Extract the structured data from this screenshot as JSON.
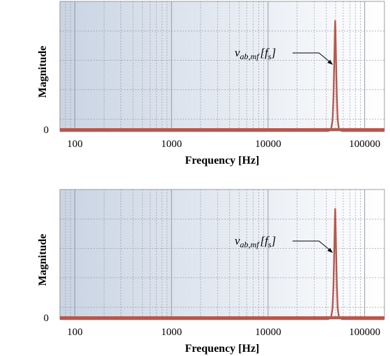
{
  "chart_data": [
    {
      "type": "line",
      "xscale": "log",
      "xlabel": "Frequency [Hz]",
      "ylabel": "Magnitude",
      "xlim": [
        70,
        160000
      ],
      "ylim": [
        0,
        1
      ],
      "xticks": [
        100,
        1000,
        10000,
        100000
      ],
      "xtick_labels": [
        "100",
        "1000",
        "10000",
        "100000"
      ],
      "yticks": [
        0
      ],
      "ytick_labels": [
        "0"
      ],
      "grid": true,
      "series": [
        {
          "x": [
            70,
            42000,
            45000,
            46500,
            47500,
            48500,
            49200,
            49500,
            49800,
            50500,
            51500,
            52500,
            54000,
            58000,
            160000
          ],
          "y": [
            0,
            0,
            0.02,
            0.1,
            0.3,
            0.65,
            0.92,
            1.0,
            0.92,
            0.65,
            0.3,
            0.1,
            0.02,
            0,
            0
          ]
        }
      ],
      "annotations": [
        {
          "main": "v",
          "sub": "ab,mf",
          "arg": "f",
          "arg_sub": "s",
          "points_to_x": 49500
        }
      ]
    },
    {
      "type": "line",
      "xscale": "log",
      "xlabel": "Frequency [Hz]",
      "ylabel": "Magnitude",
      "xlim": [
        70,
        160000
      ],
      "ylim": [
        0,
        1
      ],
      "xticks": [
        100,
        1000,
        10000,
        100000
      ],
      "xtick_labels": [
        "100",
        "1000",
        "10000",
        "100000"
      ],
      "yticks": [
        0
      ],
      "ytick_labels": [
        "0"
      ],
      "grid": true,
      "series": [
        {
          "x": [
            70,
            42000,
            45000,
            46500,
            47500,
            48500,
            49200,
            49500,
            49800,
            50500,
            51500,
            52500,
            54000,
            58000,
            160000
          ],
          "y": [
            0,
            0,
            0.02,
            0.1,
            0.3,
            0.65,
            0.92,
            1.0,
            0.92,
            0.65,
            0.3,
            0.1,
            0.02,
            0,
            0
          ]
        }
      ],
      "annotations": [
        {
          "main": "v",
          "sub": "ab,mf",
          "arg": "f",
          "arg_sub": "s",
          "points_to_x": 49500
        }
      ]
    }
  ],
  "colors": {
    "line": "#b8574c",
    "grid": "#8a8fa0",
    "bg_left": "#c9d4e3",
    "bg_right": "#ffffff"
  }
}
